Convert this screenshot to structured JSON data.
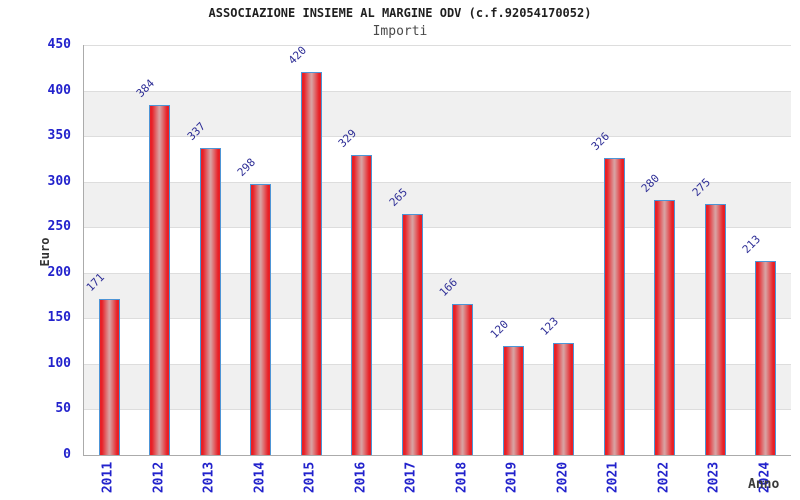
{
  "chart_data": {
    "type": "bar",
    "title": "ASSOCIAZIONE INSIEME AL MARGINE ODV (c.f.92054170052)",
    "subtitle": "Importi",
    "categories": [
      "2011",
      "2012",
      "2013",
      "2014",
      "2015",
      "2016",
      "2017",
      "2018",
      "2019",
      "2020",
      "2021",
      "2022",
      "2023",
      "2024"
    ],
    "values": [
      171,
      384,
      337,
      298,
      420,
      329,
      265,
      166,
      120,
      123,
      326,
      280,
      275,
      213
    ],
    "xlabel": "Anno",
    "ylabel": "Euro",
    "ylim": [
      0,
      450
    ],
    "ytick_step": 50,
    "yticks": [
      0,
      50,
      100,
      150,
      200,
      250,
      300,
      350,
      400,
      450
    ],
    "legend": false,
    "grid": "alternating-horizontal-bands",
    "colors": {
      "bar_red": "#e82026",
      "bar_center": "#d9a0a0",
      "bar_border": "#4d95d6",
      "tick_label_blue": "#2222cc",
      "value_label_navy": "#2e2e96",
      "band_grey": "#f0f0f0",
      "gridline_grey": "#dddddd",
      "axis_grey": "#ababab",
      "title_color": "#1f1f1f",
      "subtitle_color": "#4a4a4a",
      "axis_title_color": "#333333"
    }
  }
}
